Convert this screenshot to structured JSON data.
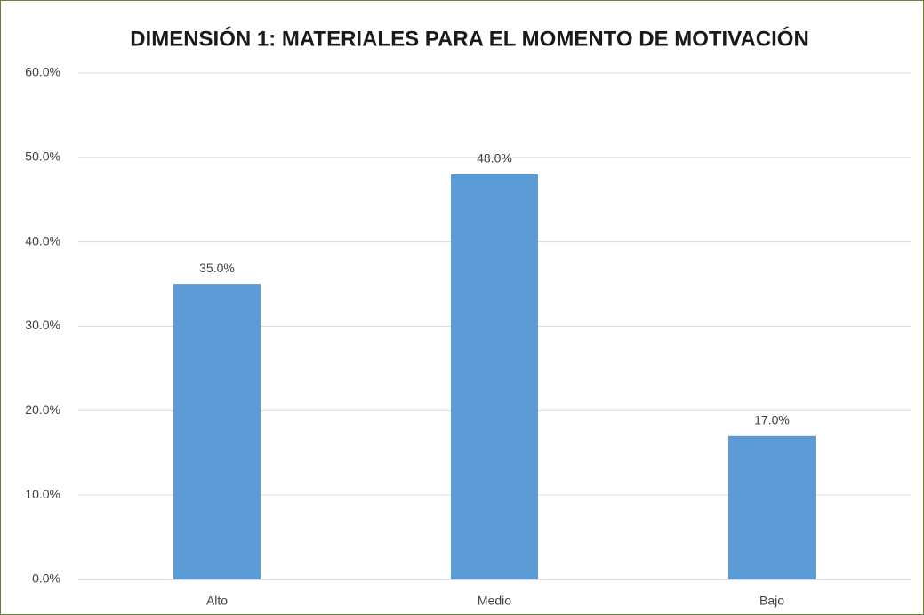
{
  "chart_data": {
    "type": "bar",
    "title": "DIMENSIÓN 1: MATERIALES PARA EL MOMENTO DE MOTIVACIÓN",
    "categories": [
      "Alto",
      "Medio",
      "Bajo"
    ],
    "values": [
      35,
      48,
      17
    ],
    "value_labels": [
      "35.0%",
      "48.0%",
      "17.0%"
    ],
    "color": "#5b9bd5",
    "ylim": [
      0,
      60
    ],
    "yticks": [
      {
        "value": 0,
        "label": "0.0%"
      },
      {
        "value": 10,
        "label": "10.0%"
      },
      {
        "value": 20,
        "label": "20.0%"
      },
      {
        "value": 30,
        "label": "30.0%"
      },
      {
        "value": 40,
        "label": "40.0%"
      },
      {
        "value": 50,
        "label": "50.0%"
      },
      {
        "value": 60,
        "label": "60.0%"
      }
    ],
    "grid": true
  }
}
